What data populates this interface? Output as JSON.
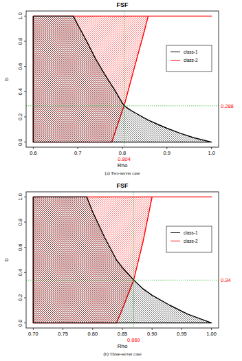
{
  "chart_data": [
    {
      "type": "area",
      "title": "FSF",
      "x_label": "Rho",
      "y_label": "b",
      "caption": "(a) Two-server case",
      "legend": "right",
      "grid": false,
      "xlim": [
        0.584,
        1.016
      ],
      "ylim": [
        -0.04,
        1.04
      ],
      "xticks": [
        0.6,
        0.7,
        0.8,
        0.9,
        {
          "value": 1,
          "label": "1.0"
        }
      ],
      "yticks": [
        {
          "value": 0,
          "label": "0.0"
        },
        0.2,
        0.4,
        0.6,
        0.8,
        {
          "value": 1,
          "label": "1.0"
        }
      ],
      "x": [
        0.6,
        0.65,
        0.69,
        0.7,
        0.72,
        0.74,
        0.76,
        0.776,
        0.78,
        0.8,
        0.804,
        0.82,
        0.83,
        0.85,
        0.858,
        0.88,
        0.9,
        0.93,
        0.96,
        1.0
      ],
      "series": [
        {
          "name": "class-1",
          "color": "#000000",
          "values": [
            1,
            1,
            1,
            0.93,
            0.8,
            0.66,
            0.54,
            0.45,
            0.43,
            0.31,
            0.288,
            0.25,
            0.23,
            0.19,
            0.175,
            0.14,
            0.11,
            0.07,
            0.035,
            0
          ],
          "lower": [
            0,
            0,
            0,
            0,
            0,
            0,
            0,
            0,
            0,
            0,
            0,
            0,
            0,
            0,
            0,
            0,
            0,
            0,
            0,
            0
          ]
        },
        {
          "name": "class-2",
          "color": "#ff0000",
          "values": [
            0,
            0,
            0,
            0,
            0,
            0,
            0,
            0,
            0.04,
            0.25,
            0.288,
            0.5,
            0.63,
            0.89,
            1,
            1,
            1,
            1,
            1,
            1
          ],
          "upper": [
            1,
            1,
            1,
            1,
            1,
            1,
            1,
            1,
            1,
            1,
            1,
            1,
            1,
            1,
            1,
            1,
            1,
            1,
            1,
            1
          ]
        }
      ],
      "annotations": [
        {
          "x": 0.804,
          "y": 0.288,
          "x_label": "0.804",
          "y_label": "0.288"
        }
      ]
    },
    {
      "type": "area",
      "title": "FSF",
      "x_label": "Rho",
      "y_label": "b",
      "caption": "(b) Three-server case",
      "legend": "right",
      "grid": false,
      "xlim": [
        0.688,
        1.012
      ],
      "ylim": [
        -0.04,
        1.04
      ],
      "xticks": [
        {
          "value": 0.7,
          "label": "0.70"
        },
        0.75,
        {
          "value": 0.8,
          "label": "0.80"
        },
        0.85,
        {
          "value": 0.9,
          "label": "0.90"
        },
        0.95,
        {
          "value": 1,
          "label": "1.00"
        }
      ],
      "yticks": [
        {
          "value": 0,
          "label": "0.0"
        },
        0.2,
        0.4,
        0.6,
        0.8,
        {
          "value": 1,
          "label": "1.0"
        }
      ],
      "x": [
        0.7,
        0.75,
        0.79,
        0.8,
        0.82,
        0.84,
        0.85,
        0.869,
        0.885,
        0.9,
        0.93,
        0.96,
        1.0
      ],
      "series": [
        {
          "name": "class-1",
          "color": "#000000",
          "values": [
            1,
            1,
            1,
            0.88,
            0.68,
            0.5,
            0.44,
            0.34,
            0.27,
            0.22,
            0.14,
            0.07,
            0
          ],
          "lower": [
            0,
            0,
            0,
            0,
            0,
            0,
            0,
            0,
            0,
            0,
            0,
            0,
            0
          ]
        },
        {
          "name": "class-2",
          "color": "#ff0000",
          "values": [
            0,
            0,
            0,
            0,
            0,
            0,
            0.11,
            0.34,
            0.65,
            1,
            1,
            1,
            1
          ],
          "upper": [
            1,
            1,
            1,
            1,
            1,
            1,
            1,
            1,
            1,
            1,
            1,
            1,
            1
          ]
        }
      ],
      "annotations": [
        {
          "x": 0.869,
          "y": 0.34,
          "x_label": "0.869",
          "y_label": "0.34"
        }
      ]
    }
  ]
}
